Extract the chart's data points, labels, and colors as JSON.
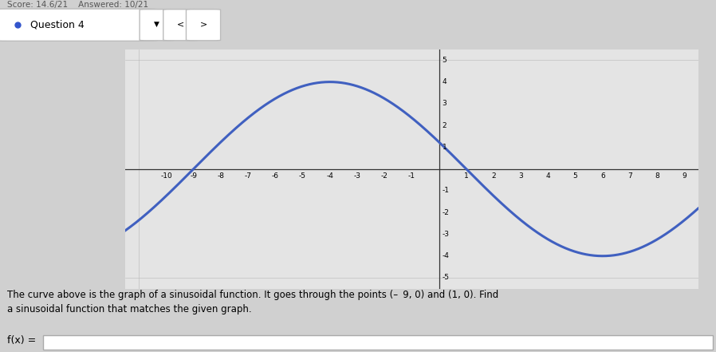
{
  "title_bar_text": "Question 4",
  "score_text": "Score: 14.6/21",
  "answered_text": "Answered: 10/21",
  "description": "The curve above is the graph of a sinusoidal function. It goes through the points (– 9, 0) and (1, 0). Find a sinusoidal function that matches the given graph.",
  "fx_label": "f(x) =",
  "amplitude": 4,
  "period": 20,
  "peak_x": -4,
  "x_min": -11.5,
  "x_max": 9.5,
  "y_min": -5.5,
  "y_max": 5.5,
  "x_ticks": [
    -10,
    -9,
    -8,
    -7,
    -6,
    -5,
    -4,
    -3,
    -2,
    -1,
    1,
    2,
    3,
    4,
    5,
    6,
    7,
    8,
    9
  ],
  "y_ticks": [
    -4,
    -3,
    -2,
    -1,
    1,
    2,
    3,
    4
  ],
  "y_labels_right": [
    "-5",
    "-4",
    "-3",
    "-2",
    "-1",
    "1",
    "2",
    "3",
    "4",
    "5"
  ],
  "curve_color": "#4060c0",
  "grid_color": "#b8b8b8",
  "plot_bg_color": "#e4e4e4",
  "figure_bg": "#d0d0d0",
  "curve_linewidth": 2.2
}
